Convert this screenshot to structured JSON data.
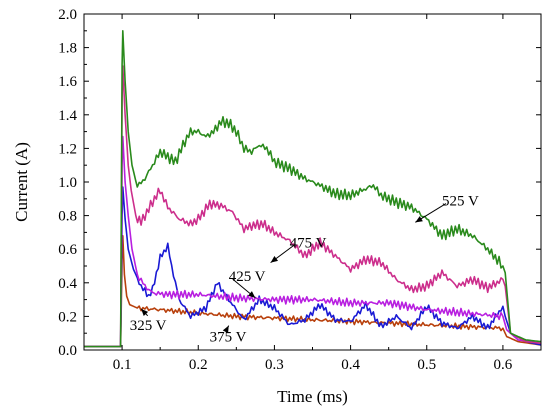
{
  "chart_data": {
    "type": "line",
    "title": "",
    "xlabel": "Time (ms)",
    "ylabel": "Current (A)",
    "xlim": [
      0.05,
      0.65
    ],
    "ylim": [
      0.0,
      2.0
    ],
    "xticks": [
      0.1,
      0.2,
      0.3,
      0.4,
      0.5,
      0.6
    ],
    "xtick_labels": [
      "0.1",
      "0.2",
      "0.3",
      "0.4",
      "0.5",
      "0.6"
    ],
    "yticks": [
      0.0,
      0.2,
      0.4,
      0.6,
      0.8,
      1.0,
      1.2,
      1.4,
      1.6,
      1.8,
      2.0
    ],
    "ytick_labels": [
      "0.0",
      "0.2",
      "0.4",
      "0.6",
      "0.8",
      "1.0",
      "1.2",
      "1.4",
      "1.6",
      "1.8",
      "2.0"
    ],
    "grid": false,
    "series": [
      {
        "name": "325 V",
        "color": "#b8400c",
        "x": [
          0.05,
          0.098,
          0.1,
          0.101,
          0.103,
          0.106,
          0.11,
          0.12,
          0.15,
          0.2,
          0.25,
          0.3,
          0.35,
          0.4,
          0.45,
          0.5,
          0.55,
          0.6,
          0.605,
          0.62,
          0.65
        ],
        "y": [
          0.02,
          0.02,
          0.55,
          0.68,
          0.45,
          0.32,
          0.27,
          0.25,
          0.24,
          0.22,
          0.2,
          0.19,
          0.18,
          0.17,
          0.16,
          0.15,
          0.14,
          0.13,
          0.08,
          0.05,
          0.03
        ]
      },
      {
        "name": "375 V",
        "color": "#1a1ad4",
        "x": [
          0.05,
          0.098,
          0.1,
          0.101,
          0.104,
          0.108,
          0.115,
          0.125,
          0.135,
          0.14,
          0.15,
          0.16,
          0.165,
          0.175,
          0.19,
          0.21,
          0.225,
          0.24,
          0.26,
          0.28,
          0.3,
          0.32,
          0.34,
          0.36,
          0.38,
          0.4,
          0.42,
          0.44,
          0.46,
          0.48,
          0.5,
          0.52,
          0.54,
          0.56,
          0.58,
          0.6,
          0.603,
          0.61,
          0.63,
          0.65
        ],
        "y": [
          0.02,
          0.02,
          0.8,
          0.97,
          0.78,
          0.6,
          0.48,
          0.38,
          0.32,
          0.36,
          0.55,
          0.62,
          0.5,
          0.3,
          0.2,
          0.25,
          0.4,
          0.3,
          0.18,
          0.3,
          0.25,
          0.15,
          0.18,
          0.27,
          0.18,
          0.17,
          0.27,
          0.14,
          0.2,
          0.13,
          0.26,
          0.16,
          0.13,
          0.2,
          0.13,
          0.26,
          0.2,
          0.1,
          0.05,
          0.03
        ]
      },
      {
        "name": "425 V",
        "color": "#b81fe0",
        "x": [
          0.05,
          0.098,
          0.1,
          0.101,
          0.104,
          0.108,
          0.113,
          0.12,
          0.13,
          0.14,
          0.16,
          0.2,
          0.25,
          0.3,
          0.35,
          0.4,
          0.45,
          0.5,
          0.55,
          0.6,
          0.605,
          0.62,
          0.65
        ],
        "y": [
          0.02,
          0.02,
          1.1,
          1.27,
          1.0,
          0.8,
          0.6,
          0.45,
          0.38,
          0.34,
          0.33,
          0.33,
          0.31,
          0.3,
          0.3,
          0.28,
          0.28,
          0.24,
          0.22,
          0.2,
          0.12,
          0.06,
          0.04
        ]
      },
      {
        "name": "475 V",
        "color": "#cc2e8c",
        "x": [
          0.05,
          0.098,
          0.1,
          0.101,
          0.104,
          0.108,
          0.112,
          0.118,
          0.125,
          0.135,
          0.145,
          0.15,
          0.16,
          0.175,
          0.19,
          0.2,
          0.215,
          0.23,
          0.245,
          0.26,
          0.27,
          0.285,
          0.3,
          0.32,
          0.34,
          0.36,
          0.38,
          0.4,
          0.42,
          0.44,
          0.46,
          0.48,
          0.5,
          0.52,
          0.54,
          0.56,
          0.58,
          0.6,
          0.603,
          0.61,
          0.63,
          0.65
        ],
        "y": [
          0.02,
          0.02,
          1.5,
          1.69,
          1.4,
          1.1,
          0.95,
          0.8,
          0.76,
          0.84,
          0.92,
          0.95,
          0.85,
          0.78,
          0.75,
          0.78,
          0.87,
          0.86,
          0.82,
          0.72,
          0.74,
          0.75,
          0.7,
          0.65,
          0.56,
          0.64,
          0.56,
          0.48,
          0.54,
          0.52,
          0.42,
          0.36,
          0.38,
          0.46,
          0.38,
          0.42,
          0.37,
          0.42,
          0.38,
          0.1,
          0.05,
          0.04
        ]
      },
      {
        "name": "525 V",
        "color": "#2a8a1c",
        "x": [
          0.05,
          0.098,
          0.1,
          0.101,
          0.104,
          0.108,
          0.113,
          0.12,
          0.13,
          0.14,
          0.15,
          0.16,
          0.17,
          0.18,
          0.19,
          0.2,
          0.21,
          0.22,
          0.23,
          0.24,
          0.25,
          0.26,
          0.27,
          0.28,
          0.29,
          0.3,
          0.32,
          0.34,
          0.36,
          0.38,
          0.4,
          0.42,
          0.43,
          0.44,
          0.46,
          0.48,
          0.5,
          0.52,
          0.54,
          0.56,
          0.58,
          0.6,
          0.603,
          0.61,
          0.63,
          0.65
        ],
        "y": [
          0.02,
          0.02,
          1.7,
          1.9,
          1.6,
          1.3,
          1.1,
          0.97,
          1.02,
          1.1,
          1.18,
          1.15,
          1.12,
          1.22,
          1.3,
          1.3,
          1.27,
          1.3,
          1.36,
          1.35,
          1.3,
          1.2,
          1.18,
          1.22,
          1.2,
          1.12,
          1.08,
          1.02,
          0.98,
          0.93,
          0.92,
          0.96,
          0.98,
          0.92,
          0.88,
          0.85,
          0.78,
          0.68,
          0.72,
          0.68,
          0.6,
          0.5,
          0.46,
          0.1,
          0.06,
          0.05
        ]
      }
    ],
    "annotations": [
      {
        "text": "525 V",
        "label_x": 0.52,
        "label_y": 0.86,
        "arrow_to": [
          0.485,
          0.76
        ]
      },
      {
        "text": "475 V",
        "label_x": 0.32,
        "label_y": 0.61,
        "arrow_to": [
          0.295,
          0.52
        ]
      },
      {
        "text": "425 V",
        "label_x": 0.24,
        "label_y": 0.41,
        "arrow_to": [
          0.275,
          0.31
        ]
      },
      {
        "text": "375 V",
        "label_x": 0.215,
        "label_y": 0.05,
        "arrow_to": [
          0.24,
          0.145
        ]
      },
      {
        "text": "325 V",
        "label_x": 0.11,
        "label_y": 0.12,
        "arrow_to": [
          0.125,
          0.245
        ]
      }
    ]
  }
}
